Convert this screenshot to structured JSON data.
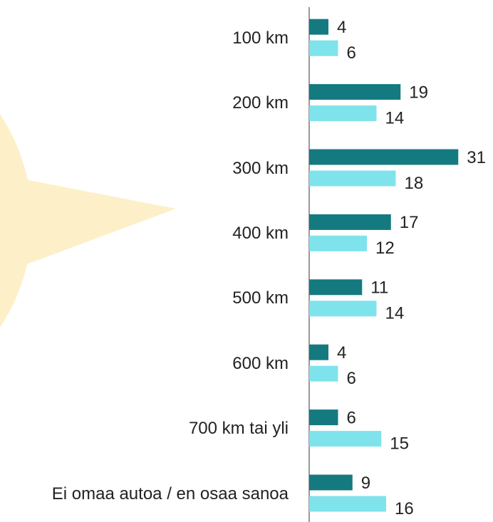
{
  "chart_data": {
    "type": "bar",
    "orientation": "horizontal",
    "categories": [
      "100 km",
      "200 km",
      "300 km",
      "400 km",
      "500 km",
      "600 km",
      "700 km tai yli",
      "Ei omaa autoa / en osaa sanoa"
    ],
    "series": [
      {
        "color": "#147a80",
        "values": [
          4,
          19,
          31,
          17,
          11,
          4,
          6,
          9
        ]
      },
      {
        "color": "#7fe3ec",
        "values": [
          6,
          14,
          18,
          12,
          14,
          6,
          15,
          16
        ]
      }
    ],
    "xlim": [
      0,
      40
    ]
  }
}
